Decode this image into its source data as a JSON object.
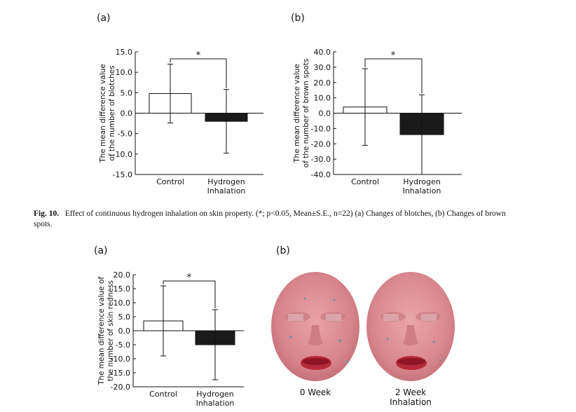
{
  "panels": {
    "top_a": "(a)",
    "top_b": "(b)",
    "bottom_a": "(a)",
    "bottom_b": "(b)"
  },
  "caption": {
    "fig": "Fig. 10.",
    "text": "Effect of continuous hydrogen inhalation on skin property. (*; p<0.05, Mean±S.E., n=22) (a) Changes of blotches, (b) Changes of brown spots."
  },
  "faces": {
    "left_label": "0 Week",
    "right_label_line1": "2 Week",
    "right_label_line2": "Inhalation"
  },
  "chart_data": [
    {
      "type": "bar",
      "id": "blotches",
      "categories": [
        "Control",
        "Hydrogen\nInhalation"
      ],
      "values": [
        4.8,
        -2.0
      ],
      "errors": [
        7.2,
        7.8
      ],
      "fills": [
        "#ffffff",
        "#1a1a1a"
      ],
      "ylabel": [
        "The mean difference value",
        "of the number of blotches"
      ],
      "ylim": [
        -15,
        15
      ],
      "ticks": [
        15,
        10,
        5,
        0,
        -5,
        -10,
        -15
      ],
      "tick_labels": [
        "15.0",
        "10.0",
        "5.0",
        "0.0",
        "-5.0",
        "-10.0",
        "-15.0"
      ],
      "significance": "*"
    },
    {
      "type": "bar",
      "id": "brown_spots",
      "categories": [
        "Control",
        "Hydrogen\nInhalation"
      ],
      "values": [
        4.0,
        -14.0
      ],
      "errors": [
        25.0,
        26.0
      ],
      "fills": [
        "#ffffff",
        "#1a1a1a"
      ],
      "ylabel": [
        "The mean difference value",
        "of the number of brown spots"
      ],
      "ylim": [
        -40,
        40
      ],
      "ticks": [
        40,
        30,
        20,
        10,
        0,
        -10,
        -20,
        -30,
        -40
      ],
      "tick_labels": [
        "40.0",
        "30.0",
        "20.0",
        "10.0",
        "0.0",
        "-10.0",
        "-20.0",
        "-30.0",
        "-40.0"
      ],
      "significance": "*"
    },
    {
      "type": "bar",
      "id": "skin_redness",
      "categories": [
        "Control",
        "Hydrogen\nInhalation"
      ],
      "values": [
        3.5,
        -5.0
      ],
      "errors": [
        12.5,
        12.5
      ],
      "fills": [
        "#ffffff",
        "#1a1a1a"
      ],
      "ylabel": [
        "The mean difference value of",
        "the number of skin redness"
      ],
      "ylim": [
        -20,
        20
      ],
      "ticks": [
        20,
        15,
        10,
        5,
        0,
        -5,
        -10,
        -15,
        -20
      ],
      "tick_labels": [
        "20.0",
        "15.0",
        "10.0",
        "5.0",
        "0.0",
        "-5.0",
        "-10.0",
        "-15.0",
        "-20.0"
      ],
      "significance": "*"
    }
  ]
}
